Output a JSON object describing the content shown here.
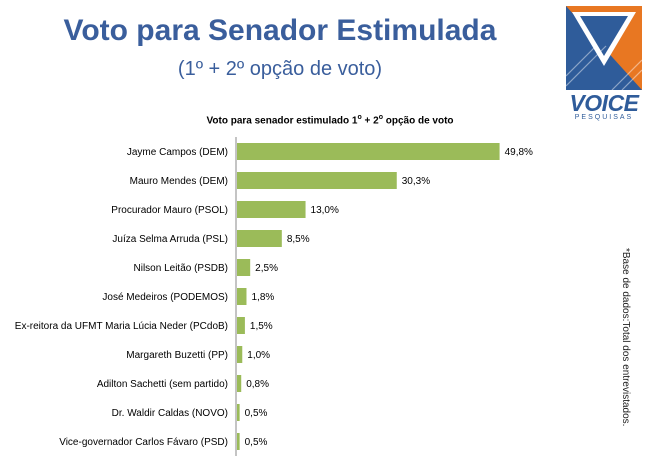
{
  "header": {
    "title": "Voto para Senador Estimulada",
    "subtitle": "(1º + 2º opção de voto)"
  },
  "logo": {
    "word": "VOICE",
    "sub": "PESQUISAS"
  },
  "footnote": "*Base de dados:Total dos entrevistados.",
  "colors": {
    "bar": "#9bbb59",
    "title": "#3a5e9c",
    "logo_blue": "#2f5c9a",
    "logo_orange": "#e87722"
  },
  "chart_data": {
    "type": "bar",
    "orientation": "horizontal",
    "title_parts": [
      "Voto para senador estimulado 1",
      "o",
      " + 2",
      "o",
      " opção de voto"
    ],
    "categories": [
      "Jayme Campos (DEM)",
      "Mauro Mendes (DEM)",
      "Procurador Mauro (PSOL)",
      "Juíza Selma Arruda (PSL)",
      "Nilson Leitão (PSDB)",
      "José Medeiros (PODEMOS)",
      "Ex-reitora da UFMT Maria Lúcia Neder (PCdoB)",
      "Margareth Buzetti (PP)",
      "Adilton Sachetti (sem partido)",
      "Dr. Waldir Caldas (NOVO)",
      "Vice-governador Carlos Fávaro (PSD)"
    ],
    "values": [
      49.8,
      30.3,
      13.0,
      8.5,
      2.5,
      1.8,
      1.5,
      1.0,
      0.8,
      0.5,
      0.5
    ],
    "value_labels": [
      "49,8%",
      "30,3%",
      "13,0%",
      "8,5%",
      "2,5%",
      "1,8%",
      "1,5%",
      "1,0%",
      "0,8%",
      "0,5%",
      "0,5%"
    ],
    "xlim": [
      0,
      55
    ],
    "grid": false,
    "legend": "none"
  }
}
